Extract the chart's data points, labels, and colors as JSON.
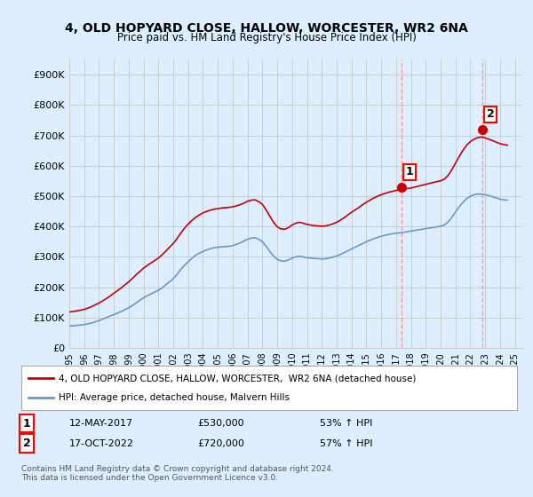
{
  "title": "4, OLD HOPYARD CLOSE, HALLOW, WORCESTER, WR2 6NA",
  "subtitle": "Price paid vs. HM Land Registry's House Price Index (HPI)",
  "ylabel_ticks": [
    "£0",
    "£100K",
    "£200K",
    "£300K",
    "£400K",
    "£500K",
    "£600K",
    "£700K",
    "£800K",
    "£900K"
  ],
  "ytick_values": [
    0,
    100000,
    200000,
    300000,
    400000,
    500000,
    600000,
    700000,
    800000,
    900000
  ],
  "ylim": [
    0,
    950000
  ],
  "xlim_start": 1995.0,
  "xlim_end": 2025.5,
  "sale1_x": 2017.36,
  "sale1_y": 530000,
  "sale2_x": 2022.79,
  "sale2_y": 720000,
  "sale1_label": "1",
  "sale2_label": "2",
  "sale1_date": "12-MAY-2017",
  "sale1_price": "£530,000",
  "sale1_hpi": "53% ↑ HPI",
  "sale2_date": "17-OCT-2022",
  "sale2_price": "£720,000",
  "sale2_hpi": "57% ↑ HPI",
  "legend_line1": "4, OLD HOPYARD CLOSE, HALLOW, WORCESTER,  WR2 6NA (detached house)",
  "legend_line2": "HPI: Average price, detached house, Malvern Hills",
  "footer": "Contains HM Land Registry data © Crown copyright and database right 2024.\nThis data is licensed under the Open Government Licence v3.0.",
  "line_color_red": "#cc0000",
  "line_color_blue": "#6699cc",
  "vline_color": "#ff9999",
  "background_color": "#ddeeff",
  "plot_bg": "#ffffff",
  "grid_color": "#cccccc",
  "hpi_years": [
    1995.0,
    1995.25,
    1995.5,
    1995.75,
    1996.0,
    1996.25,
    1996.5,
    1996.75,
    1997.0,
    1997.25,
    1997.5,
    1997.75,
    1998.0,
    1998.25,
    1998.5,
    1998.75,
    1999.0,
    1999.25,
    1999.5,
    1999.75,
    2000.0,
    2000.25,
    2000.5,
    2000.75,
    2001.0,
    2001.25,
    2001.5,
    2001.75,
    2002.0,
    2002.25,
    2002.5,
    2002.75,
    2003.0,
    2003.25,
    2003.5,
    2003.75,
    2004.0,
    2004.25,
    2004.5,
    2004.75,
    2005.0,
    2005.25,
    2005.5,
    2005.75,
    2006.0,
    2006.25,
    2006.5,
    2006.75,
    2007.0,
    2007.25,
    2007.5,
    2007.75,
    2008.0,
    2008.25,
    2008.5,
    2008.75,
    2009.0,
    2009.25,
    2009.5,
    2009.75,
    2010.0,
    2010.25,
    2010.5,
    2010.75,
    2011.0,
    2011.25,
    2011.5,
    2011.75,
    2012.0,
    2012.25,
    2012.5,
    2012.75,
    2013.0,
    2013.25,
    2013.5,
    2013.75,
    2014.0,
    2014.25,
    2014.5,
    2014.75,
    2015.0,
    2015.25,
    2015.5,
    2015.75,
    2016.0,
    2016.25,
    2016.5,
    2016.75,
    2017.0,
    2017.25,
    2017.5,
    2017.75,
    2018.0,
    2018.25,
    2018.5,
    2018.75,
    2019.0,
    2019.25,
    2019.5,
    2019.75,
    2020.0,
    2020.25,
    2020.5,
    2020.75,
    2021.0,
    2021.25,
    2021.5,
    2021.75,
    2022.0,
    2022.25,
    2022.5,
    2022.75,
    2023.0,
    2023.25,
    2023.5,
    2023.75,
    2024.0,
    2024.25,
    2024.5
  ],
  "hpi_values": [
    72000,
    73000,
    74000,
    75500,
    77000,
    79000,
    82000,
    86000,
    90000,
    95000,
    100000,
    105000,
    110000,
    115000,
    120000,
    126000,
    132000,
    140000,
    148000,
    157000,
    165000,
    172000,
    178000,
    184000,
    190000,
    198000,
    208000,
    218000,
    228000,
    242000,
    258000,
    272000,
    284000,
    295000,
    305000,
    312000,
    318000,
    323000,
    327000,
    330000,
    332000,
    333000,
    334000,
    335000,
    337000,
    341000,
    346000,
    352000,
    358000,
    362000,
    363000,
    358000,
    350000,
    335000,
    318000,
    303000,
    292000,
    287000,
    286000,
    290000,
    296000,
    300000,
    302000,
    300000,
    297000,
    296000,
    295000,
    294000,
    293000,
    294000,
    296000,
    299000,
    303000,
    308000,
    314000,
    320000,
    326000,
    332000,
    338000,
    344000,
    350000,
    355000,
    360000,
    364000,
    368000,
    371000,
    374000,
    376000,
    378000,
    379000,
    381000,
    383000,
    385000,
    387000,
    389000,
    391000,
    393000,
    395000,
    397000,
    399000,
    401000,
    405000,
    415000,
    430000,
    448000,
    465000,
    480000,
    492000,
    500000,
    505000,
    507000,
    507000,
    505000,
    502000,
    498000,
    494000,
    490000,
    488000,
    487000
  ],
  "price_years": [
    1995.0,
    1995.25,
    1995.5,
    1995.75,
    1996.0,
    1996.25,
    1996.5,
    1996.75,
    1997.0,
    1997.25,
    1997.5,
    1997.75,
    1998.0,
    1998.25,
    1998.5,
    1998.75,
    1999.0,
    1999.25,
    1999.5,
    1999.75,
    2000.0,
    2000.25,
    2000.5,
    2000.75,
    2001.0,
    2001.25,
    2001.5,
    2001.75,
    2002.0,
    2002.25,
    2002.5,
    2002.75,
    2003.0,
    2003.25,
    2003.5,
    2003.75,
    2004.0,
    2004.25,
    2004.5,
    2004.75,
    2005.0,
    2005.25,
    2005.5,
    2005.75,
    2006.0,
    2006.25,
    2006.5,
    2006.75,
    2007.0,
    2007.25,
    2007.5,
    2007.75,
    2008.0,
    2008.25,
    2008.5,
    2008.75,
    2009.0,
    2009.25,
    2009.5,
    2009.75,
    2010.0,
    2010.25,
    2010.5,
    2010.75,
    2011.0,
    2011.25,
    2011.5,
    2011.75,
    2012.0,
    2012.25,
    2012.5,
    2012.75,
    2013.0,
    2013.25,
    2013.5,
    2013.75,
    2014.0,
    2014.25,
    2014.5,
    2014.75,
    2015.0,
    2015.25,
    2015.5,
    2015.75,
    2016.0,
    2016.25,
    2016.5,
    2016.75,
    2017.0,
    2017.25,
    2017.5,
    2017.75,
    2018.0,
    2018.25,
    2018.5,
    2018.75,
    2019.0,
    2019.25,
    2019.5,
    2019.75,
    2020.0,
    2020.25,
    2020.5,
    2020.75,
    2021.0,
    2021.25,
    2021.5,
    2021.75,
    2022.0,
    2022.25,
    2022.5,
    2022.75,
    2023.0,
    2023.25,
    2023.5,
    2023.75,
    2024.0,
    2024.25,
    2024.5
  ],
  "price_values": [
    118000,
    120000,
    122000,
    124000,
    127000,
    131000,
    136000,
    142000,
    148000,
    155000,
    163000,
    171000,
    180000,
    189000,
    198000,
    208000,
    218000,
    229000,
    241000,
    252000,
    263000,
    272000,
    280000,
    288000,
    296000,
    307000,
    319000,
    332000,
    344000,
    360000,
    378000,
    394000,
    408000,
    420000,
    430000,
    438000,
    445000,
    450000,
    454000,
    457000,
    459000,
    461000,
    462000,
    463000,
    465000,
    468000,
    472000,
    477000,
    483000,
    487000,
    488000,
    482000,
    473000,
    455000,
    434000,
    414000,
    399000,
    392000,
    391000,
    396000,
    405000,
    411000,
    414000,
    411000,
    407000,
    405000,
    403000,
    402000,
    401000,
    402000,
    405000,
    409000,
    414000,
    421000,
    429000,
    438000,
    447000,
    455000,
    463000,
    472000,
    480000,
    487000,
    494000,
    500000,
    505000,
    509000,
    513000,
    516000,
    519000,
    521000,
    523000,
    525000,
    527000,
    530000,
    533000,
    536000,
    539000,
    542000,
    545000,
    548000,
    551000,
    556000,
    568000,
    587000,
    609000,
    631000,
    651000,
    668000,
    680000,
    688000,
    693000,
    695000,
    692000,
    688000,
    683000,
    678000,
    673000,
    670000,
    668000
  ]
}
